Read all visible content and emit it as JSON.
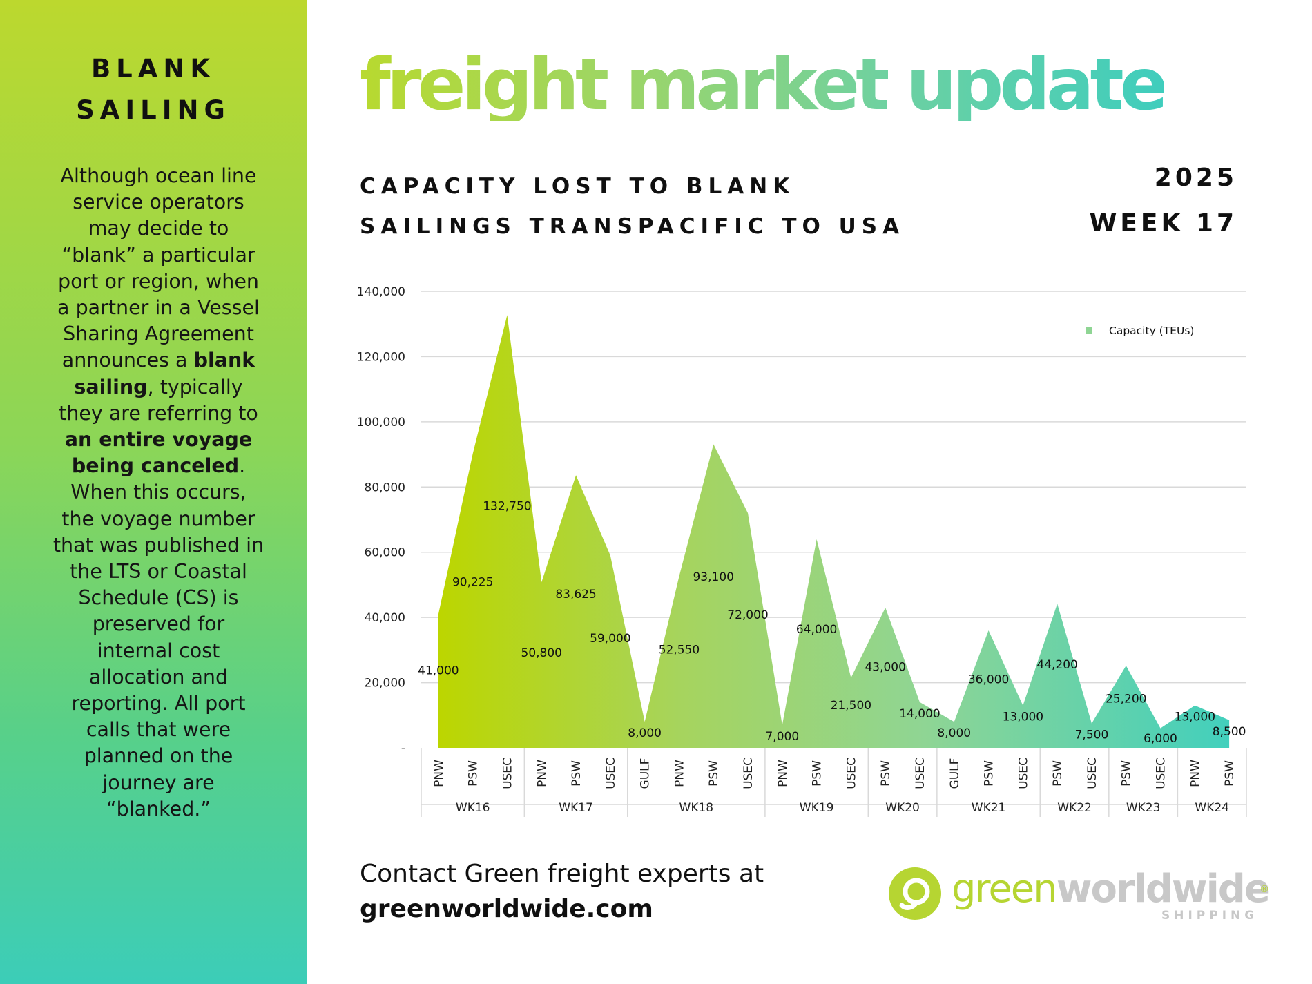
{
  "sidebar": {
    "title_line1": "BLANK",
    "title_line2": "SAILING",
    "body_segments": [
      {
        "text": "Although ocean line service operators may decide to “blank” a particular port or region, when a partner in a Vessel Sharing Agreement announces a ",
        "bold": false
      },
      {
        "text": "blank sailing",
        "bold": true
      },
      {
        "text": ", typically they are referring to ",
        "bold": false
      },
      {
        "text": "an entire voyage being canceled",
        "bold": true
      },
      {
        "text": ". When this occurs, the voyage number that was published in the LTS or Coastal Schedule (CS) is preserved for internal cost allocation and reporting. All port calls that were planned on the journey are “blanked.”",
        "bold": false
      }
    ]
  },
  "header": {
    "headline": "freight market update",
    "subtitle_line1": "CAPACITY LOST TO BLANK",
    "subtitle_line2": "SAILINGS TRANSPACIFIC TO USA",
    "year": "2025",
    "week": "WEEK 17"
  },
  "footer": {
    "contact": "Contact Green freight experts at",
    "website": "greenworldwide.com",
    "logo_word_green": "green",
    "logo_word_gray": "worldwide",
    "logo_registered": "®",
    "logo_sub": "SHIPPING"
  },
  "colors": {
    "accent_lime": "#b8d92f",
    "accent_teal": "#3fcdbd",
    "text_dark": "#101010"
  },
  "chart_data": {
    "type": "area",
    "title": "",
    "xlabel": "",
    "ylabel": "",
    "ylim": [
      0,
      140000
    ],
    "y_ticks": [
      0,
      20000,
      40000,
      60000,
      80000,
      100000,
      120000,
      140000
    ],
    "y_tick_labels": [
      "-",
      "20,000",
      "40,000",
      "60,000",
      "80,000",
      "100,000",
      "120,000",
      "140,000"
    ],
    "grid": true,
    "legend_position": "top-right",
    "series": [
      {
        "name": "Capacity (TEUs)",
        "categories": [
          {
            "week": "WK16",
            "port": "PNW"
          },
          {
            "week": "WK16",
            "port": "PSW"
          },
          {
            "week": "WK16",
            "port": "USEC"
          },
          {
            "week": "WK17",
            "port": "PNW"
          },
          {
            "week": "WK17",
            "port": "PSW"
          },
          {
            "week": "WK17",
            "port": "USEC"
          },
          {
            "week": "WK18",
            "port": "GULF"
          },
          {
            "week": "WK18",
            "port": "PNW"
          },
          {
            "week": "WK18",
            "port": "PSW"
          },
          {
            "week": "WK18",
            "port": "USEC"
          },
          {
            "week": "WK19",
            "port": "PNW"
          },
          {
            "week": "WK19",
            "port": "PSW"
          },
          {
            "week": "WK19",
            "port": "USEC"
          },
          {
            "week": "WK20",
            "port": "PSW"
          },
          {
            "week": "WK20",
            "port": "USEC"
          },
          {
            "week": "WK21",
            "port": "GULF"
          },
          {
            "week": "WK21",
            "port": "PSW"
          },
          {
            "week": "WK21",
            "port": "USEC"
          },
          {
            "week": "WK22",
            "port": "PSW"
          },
          {
            "week": "WK22",
            "port": "USEC"
          },
          {
            "week": "WK23",
            "port": "PSW"
          },
          {
            "week": "WK23",
            "port": "USEC"
          },
          {
            "week": "WK24",
            "port": "PNW"
          },
          {
            "week": "WK24",
            "port": "PSW"
          }
        ],
        "values": [
          41000,
          90225,
          132750,
          50800,
          83625,
          59000,
          8000,
          52550,
          93100,
          72000,
          7000,
          64000,
          21500,
          43000,
          14000,
          8000,
          36000,
          13000,
          44200,
          7500,
          25200,
          6000,
          13000,
          8500
        ],
        "value_labels": [
          "41,000",
          "90,225",
          "132,750",
          "50,800",
          "83,625",
          "59,000",
          "8,000",
          "52,550",
          "93,100",
          "72,000",
          "7,000",
          "64,000",
          "21,500",
          "43,000",
          "14,000",
          "8,000",
          "36,000",
          "13,000",
          "44,200",
          "7,500",
          "25,200",
          "6,000",
          "13,000",
          "8,500"
        ]
      }
    ],
    "week_groups": [
      {
        "label": "WK16",
        "count": 3
      },
      {
        "label": "WK17",
        "count": 3
      },
      {
        "label": "WK18",
        "count": 4
      },
      {
        "label": "WK19",
        "count": 3
      },
      {
        "label": "WK20",
        "count": 2
      },
      {
        "label": "WK21",
        "count": 3
      },
      {
        "label": "WK22",
        "count": 2
      },
      {
        "label": "WK23",
        "count": 2
      },
      {
        "label": "WK24",
        "count": 2
      }
    ]
  }
}
